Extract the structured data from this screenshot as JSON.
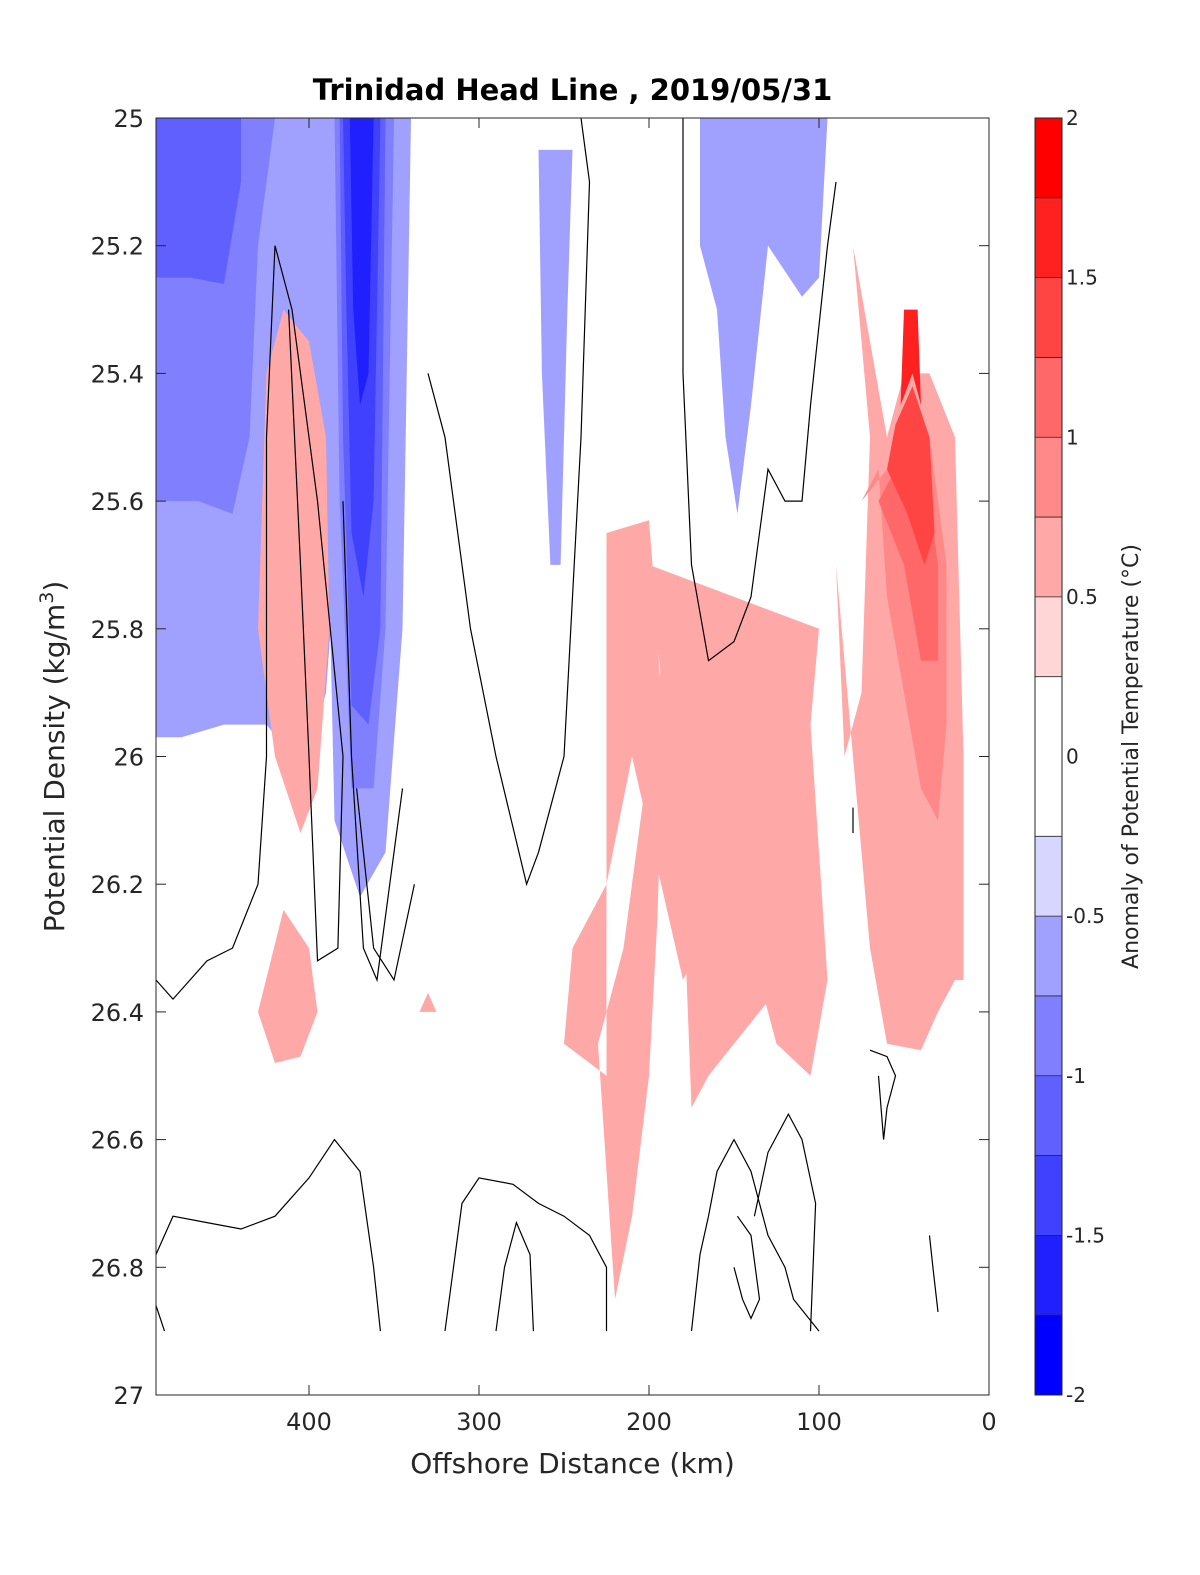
{
  "chart_data": {
    "type": "contour",
    "title": "Trinidad Head Line , 2019/05/31",
    "xlabel": "Offshore Distance (km)",
    "ylabel_main": "Potential Density (kg/m",
    "ylabel_sup": "3",
    "ylabel_close": ")",
    "xlim": [
      490,
      0
    ],
    "ylim": [
      25,
      27
    ],
    "x_ticks": [
      "400",
      "300",
      "200",
      "100",
      "0"
    ],
    "y_ticks": [
      "25",
      "25.2",
      "25.4",
      "25.6",
      "25.8",
      "26",
      "26.2",
      "26.4",
      "26.6",
      "26.8",
      "27"
    ],
    "colorbar": {
      "label": "Anomaly of Potential Temperature (°C)",
      "range": [
        -2,
        2
      ],
      "ticks": [
        "-2",
        "-1.5",
        "-1",
        "-0.5",
        "0",
        "0.5",
        "1",
        "1.5",
        "2"
      ],
      "levels": [
        {
          "lo": -2.0,
          "hi": -1.75,
          "color": "#0000ff"
        },
        {
          "lo": -1.75,
          "hi": -1.5,
          "color": "#2020ff"
        },
        {
          "lo": -1.5,
          "hi": -1.25,
          "color": "#4040ff"
        },
        {
          "lo": -1.25,
          "hi": -1.0,
          "color": "#6060ff"
        },
        {
          "lo": -1.0,
          "hi": -0.75,
          "color": "#8080ff"
        },
        {
          "lo": -0.75,
          "hi": -0.5,
          "color": "#a0a0ff"
        },
        {
          "lo": -0.5,
          "hi": -0.25,
          "color": "#d6d6ff"
        },
        {
          "lo": -0.25,
          "hi": 0.25,
          "color": "#ffffff"
        },
        {
          "lo": 0.25,
          "hi": 0.5,
          "color": "#ffd6d6"
        },
        {
          "lo": 0.5,
          "hi": 0.75,
          "color": "#ffa8a8"
        },
        {
          "lo": 0.75,
          "hi": 1.0,
          "color": "#ff8888"
        },
        {
          "lo": 1.0,
          "hi": 1.25,
          "color": "#ff6868"
        },
        {
          "lo": 1.25,
          "hi": 1.5,
          "color": "#ff4444"
        },
        {
          "lo": 1.5,
          "hi": 1.75,
          "color": "#ff2020"
        },
        {
          "lo": 1.75,
          "hi": 2.0,
          "color": "#ff0000"
        }
      ]
    },
    "filled_regions": [
      {
        "level": -0.5,
        "points": [
          [
            490,
            25
          ],
          [
            350,
            25
          ],
          [
            350,
            25.2
          ],
          [
            375,
            25.35
          ],
          [
            390,
            25.9
          ],
          [
            400,
            26.0
          ],
          [
            410,
            26.0
          ],
          [
            425,
            25.95
          ],
          [
            450,
            25.95
          ],
          [
            475,
            25.97
          ],
          [
            490,
            25.97
          ]
        ]
      },
      {
        "level": -0.75,
        "points": [
          [
            490,
            25
          ],
          [
            420,
            25
          ],
          [
            430,
            25.2
          ],
          [
            435,
            25.5
          ],
          [
            445,
            25.62
          ],
          [
            465,
            25.6
          ],
          [
            490,
            25.6
          ]
        ]
      },
      {
        "level": -1.0,
        "points": [
          [
            490,
            25
          ],
          [
            440,
            25
          ],
          [
            440,
            25.1
          ],
          [
            450,
            25.26
          ],
          [
            470,
            25.25
          ],
          [
            490,
            25.25
          ]
        ]
      },
      {
        "level": -0.5,
        "points": [
          [
            390,
            25.0
          ],
          [
            340,
            25.0
          ],
          [
            345,
            25.8
          ],
          [
            355,
            26.15
          ],
          [
            370,
            26.22
          ],
          [
            385,
            26.1
          ],
          [
            390,
            25.5
          ]
        ]
      },
      {
        "level": -0.75,
        "points": [
          [
            385,
            25.0
          ],
          [
            350,
            25.0
          ],
          [
            355,
            25.8
          ],
          [
            362,
            26.05
          ],
          [
            375,
            26.05
          ],
          [
            382,
            25.6
          ]
        ]
      },
      {
        "level": -1.0,
        "points": [
          [
            382,
            25.0
          ],
          [
            355,
            25.0
          ],
          [
            358,
            25.8
          ],
          [
            365,
            25.95
          ],
          [
            375,
            25.92
          ],
          [
            380,
            25.5
          ]
        ]
      },
      {
        "level": -1.25,
        "points": [
          [
            380,
            25.0
          ],
          [
            358,
            25.0
          ],
          [
            362,
            25.6
          ],
          [
            368,
            25.75
          ],
          [
            375,
            25.65
          ],
          [
            378,
            25.3
          ]
        ]
      },
      {
        "level": -1.5,
        "points": [
          [
            376,
            25.0
          ],
          [
            362,
            25.0
          ],
          [
            365,
            25.4
          ],
          [
            370,
            25.45
          ],
          [
            374,
            25.3
          ]
        ]
      },
      {
        "level": -0.5,
        "points": [
          [
            265,
            25.05
          ],
          [
            245,
            25.05
          ],
          [
            248,
            25.3
          ],
          [
            252,
            25.7
          ],
          [
            258,
            25.7
          ],
          [
            263,
            25.4
          ]
        ]
      },
      {
        "level": -0.5,
        "points": [
          [
            170,
            25.0
          ],
          [
            95,
            25.0
          ],
          [
            100,
            25.25
          ],
          [
            110,
            25.28
          ],
          [
            130,
            25.2
          ],
          [
            140,
            25.45
          ],
          [
            148,
            25.62
          ],
          [
            155,
            25.5
          ],
          [
            160,
            25.3
          ],
          [
            170,
            25.2
          ]
        ]
      },
      {
        "level": 0.5,
        "points": [
          [
            225,
            25.65
          ],
          [
            200,
            25.63
          ],
          [
            195,
            25.8
          ],
          [
            192,
            26.0
          ],
          [
            195,
            26.25
          ],
          [
            200,
            26.5
          ],
          [
            210,
            26.72
          ],
          [
            220,
            26.85
          ],
          [
            230,
            26.45
          ],
          [
            215,
            26.3
          ],
          [
            200,
            26.0
          ],
          [
            190,
            25.8
          ],
          [
            185,
            25.9
          ],
          [
            175,
            26.02
          ],
          [
            165,
            26.0
          ],
          [
            135,
            26.0
          ],
          [
            120,
            25.9
          ],
          [
            115,
            25.8
          ],
          [
            105,
            25.95
          ],
          [
            100,
            26.15
          ],
          [
            95,
            26.35
          ],
          [
            105,
            26.5
          ],
          [
            125,
            26.45
          ],
          [
            150,
            26.2
          ],
          [
            180,
            26.35
          ],
          [
            210,
            26.0
          ],
          [
            225,
            26.2
          ],
          [
            245,
            26.3
          ],
          [
            250,
            26.45
          ],
          [
            225,
            26.5
          ]
        ]
      },
      {
        "level": 0.5,
        "points": [
          [
            100,
            25.8
          ],
          [
            110,
            26.1
          ],
          [
            120,
            26.35
          ],
          [
            150,
            26.45
          ],
          [
            165,
            26.5
          ],
          [
            175,
            26.55
          ],
          [
            180,
            26.2
          ],
          [
            200,
            25.7
          ]
        ]
      },
      {
        "level": 0.5,
        "points": [
          [
            415,
            25.3
          ],
          [
            425,
            25.4
          ],
          [
            430,
            25.8
          ],
          [
            420,
            26.0
          ],
          [
            405,
            26.12
          ],
          [
            395,
            26.05
          ],
          [
            388,
            25.8
          ],
          [
            390,
            25.5
          ],
          [
            400,
            25.35
          ]
        ]
      },
      {
        "level": 0.5,
        "points": [
          [
            430,
            26.4
          ],
          [
            415,
            26.24
          ],
          [
            400,
            26.3
          ],
          [
            395,
            26.4
          ],
          [
            405,
            26.47
          ],
          [
            420,
            26.48
          ]
        ]
      },
      {
        "level": 0.5,
        "points": [
          [
            330,
            26.37
          ],
          [
            325,
            26.4
          ],
          [
            335,
            26.4
          ]
        ]
      },
      {
        "level": 0.5,
        "points": [
          [
            80,
            25.2
          ],
          [
            70,
            25.5
          ],
          [
            75,
            25.9
          ],
          [
            85,
            26.0
          ],
          [
            90,
            25.7
          ],
          [
            70,
            26.3
          ],
          [
            60,
            26.45
          ],
          [
            40,
            26.46
          ],
          [
            30,
            26.4
          ],
          [
            20,
            26.35
          ],
          [
            15,
            26.35
          ],
          [
            15,
            26.0
          ],
          [
            20,
            25.5
          ],
          [
            35,
            25.4
          ],
          [
            50,
            25.4
          ],
          [
            60,
            25.5
          ],
          [
            80,
            25.2
          ]
        ]
      },
      {
        "level": 0.75,
        "points": [
          [
            75,
            25.6
          ],
          [
            65,
            25.55
          ],
          [
            60,
            25.75
          ],
          [
            50,
            25.9
          ],
          [
            40,
            26.05
          ],
          [
            30,
            26.1
          ],
          [
            25,
            25.95
          ],
          [
            25,
            25.7
          ],
          [
            35,
            25.5
          ],
          [
            50,
            25.6
          ],
          [
            60,
            25.55
          ]
        ]
      },
      {
        "level": 1.0,
        "points": [
          [
            65,
            25.6
          ],
          [
            50,
            25.7
          ],
          [
            40,
            25.85
          ],
          [
            30,
            25.85
          ],
          [
            30,
            25.7
          ],
          [
            40,
            25.5
          ],
          [
            55,
            25.55
          ]
        ]
      },
      {
        "level": 1.25,
        "points": [
          [
            60,
            25.55
          ],
          [
            48,
            25.62
          ],
          [
            38,
            25.7
          ],
          [
            32,
            25.65
          ],
          [
            35,
            25.5
          ],
          [
            45,
            25.42
          ],
          [
            55,
            25.48
          ]
        ]
      },
      {
        "level": 1.5,
        "points": [
          [
            52,
            25.45
          ],
          [
            45,
            25.4
          ],
          [
            40,
            25.45
          ],
          [
            42,
            25.3
          ],
          [
            50,
            25.3
          ]
        ]
      }
    ]
  }
}
